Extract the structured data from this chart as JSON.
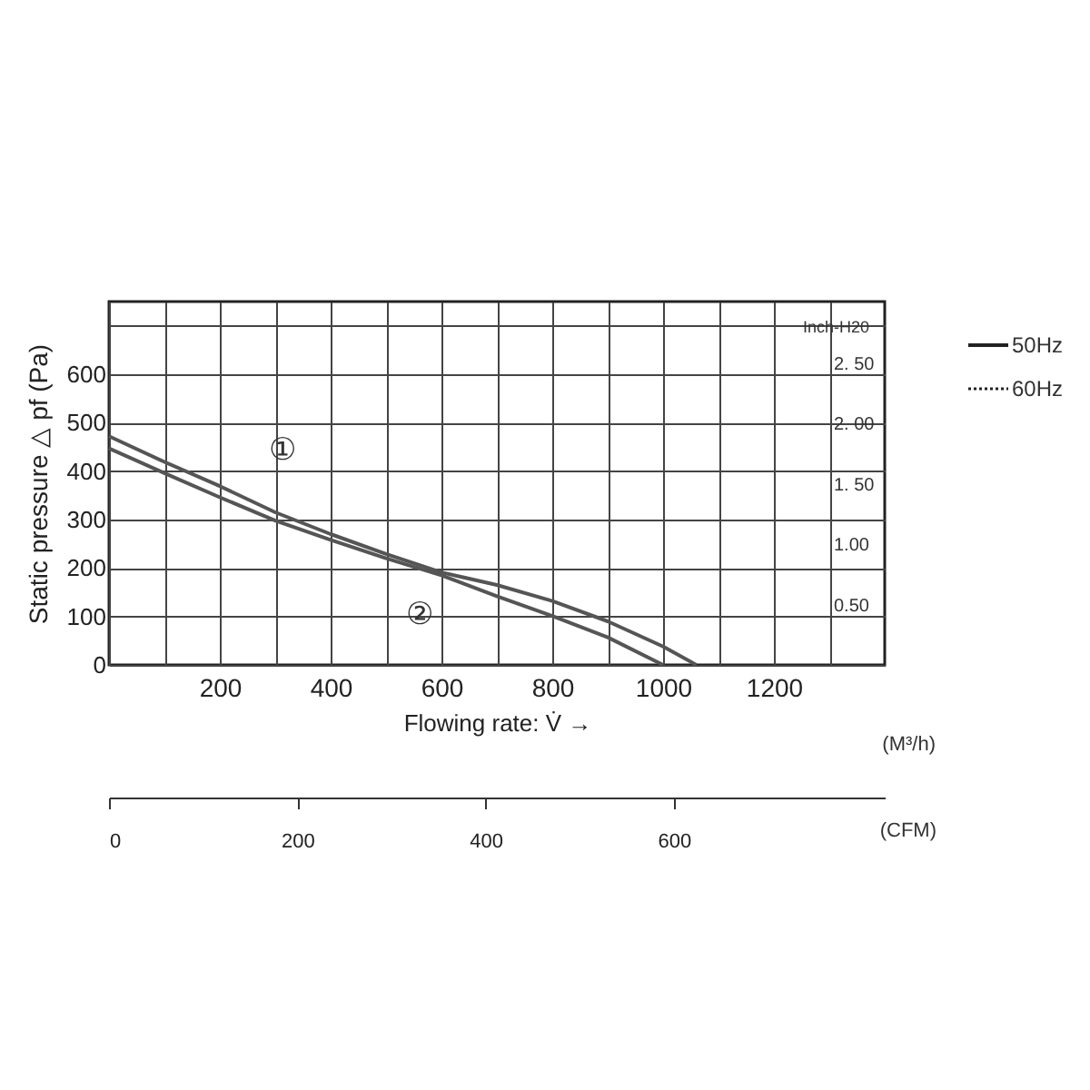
{
  "chart_data": {
    "type": "line",
    "xlabel": "Flowing rate: V̇ →",
    "ylabel": "Static pressure △ pf (Pa)",
    "y2label": "Inch-H20",
    "x2label": "(CFM)",
    "annotations": [
      "(M³/h)",
      "50Hz",
      "60Hz"
    ],
    "xlim": [
      0,
      1400
    ],
    "xticks": [
      {
        "value": 0,
        "label": null
      },
      {
        "value": 100,
        "label": null
      },
      200,
      {
        "value": 300,
        "label": null
      },
      400,
      {
        "value": 500,
        "label": null
      },
      600,
      {
        "value": 700,
        "label": null
      },
      800,
      {
        "value": 900,
        "label": null
      },
      1000,
      {
        "value": 1100,
        "label": null
      },
      1200,
      {
        "value": 1300,
        "label": null
      }
    ],
    "ylim": [
      0,
      750
    ],
    "yticks": [
      0,
      100,
      200,
      300,
      400,
      500,
      600,
      {
        "value": 700,
        "label": null
      }
    ],
    "y2lim": [
      0,
      3.01
    ],
    "y2ticks": [
      {
        "value": 0.5,
        "label": "0.50"
      },
      {
        "value": 1.0,
        "label": "1.00"
      },
      {
        "value": 1.5,
        "label": "1. 50"
      },
      {
        "value": 2.0,
        "label": "2. 00"
      },
      {
        "value": 2.5,
        "label": "2. 50"
      }
    ],
    "x2lim": [
      0,
      824
    ],
    "x2ticks": [
      0,
      200,
      400,
      600
    ],
    "grid": true,
    "marker": "none",
    "line_style": "solid",
    "series": [
      {
        "name": "①",
        "color": "#555555",
        "x": [
          0,
          100,
          200,
          300,
          400,
          500,
          600,
          700,
          800,
          900,
          1000,
          1060
        ],
        "values": [
          472,
          419,
          369,
          315,
          270,
          229,
          191,
          165,
          132,
          90,
          38,
          0
        ]
      },
      {
        "name": "②",
        "color": "#555555",
        "x": [
          0,
          100,
          200,
          300,
          400,
          500,
          600,
          700,
          800,
          900,
          1000
        ],
        "values": [
          447,
          396,
          346,
          298,
          258,
          220,
          185,
          142,
          101,
          57,
          0
        ]
      }
    ]
  }
}
